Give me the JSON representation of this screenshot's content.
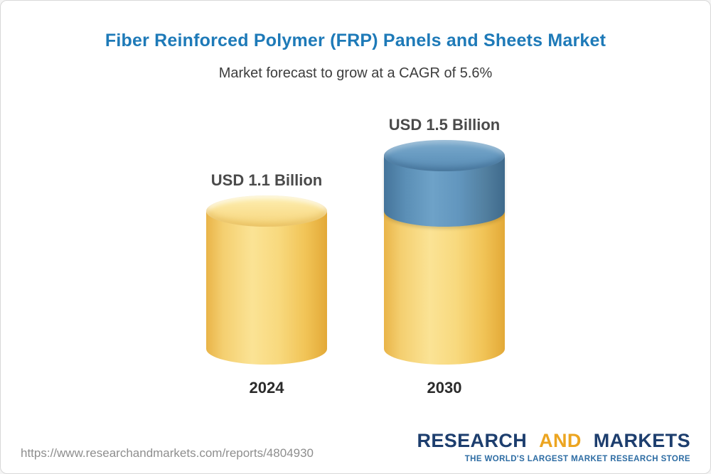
{
  "page": {
    "title": "Fiber Reinforced Polymer (FRP) Panels and Sheets Market",
    "subtitle": "Market forecast to grow at a CAGR of 5.6%"
  },
  "chart_data": {
    "type": "bar",
    "title": "Fiber Reinforced Polymer (FRP) Panels and Sheets Market",
    "subtitle": "Market forecast to grow at a CAGR of 5.6%",
    "cagr_percent": 5.6,
    "unit": "USD Billion",
    "categories": [
      "2024",
      "2030"
    ],
    "values": [
      1.1,
      1.5
    ],
    "value_labels": [
      "USD 1.1 Billion",
      "USD 1.5 Billion"
    ],
    "series": [
      {
        "name": "base",
        "values": [
          1.1,
          1.1
        ],
        "color": "#F5CE6A"
      },
      {
        "name": "growth",
        "values": [
          0,
          0.4
        ],
        "color": "#5B8FB6"
      }
    ],
    "legend": "none",
    "grid": false,
    "bar_style": "3d-cylinder"
  },
  "footer": {
    "url": "https://www.researchandmarkets.com/reports/4804930",
    "logo": {
      "part1": "RESEARCH",
      "part2": "AND",
      "part3": "MARKETS",
      "tagline": "THE WORLD'S LARGEST MARKET RESEARCH STORE"
    }
  }
}
